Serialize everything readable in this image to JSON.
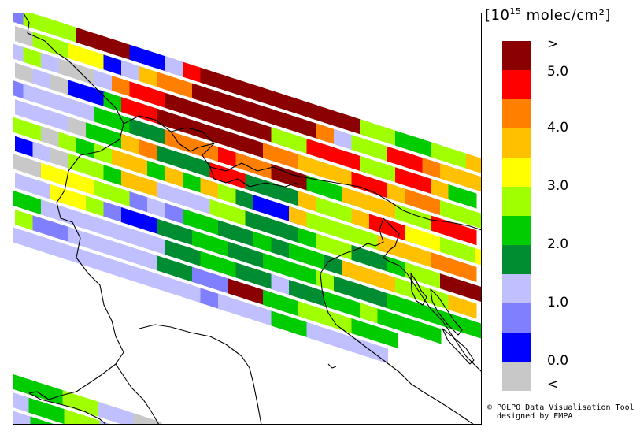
{
  "map": {
    "region": "Northern Italy and Alps",
    "bins": [
      "<",
      "0.0-0.5",
      "0.5-1.0",
      "1.0-1.5",
      "1.5-2.0",
      "2.0-2.5",
      "2.5-3.0",
      "3.0-3.5",
      "3.5-4.0",
      "4.0-4.5",
      "4.5-5.0",
      ">"
    ]
  },
  "legend": {
    "unit_prefix": "[10",
    "unit_exp": "15",
    "unit_suffix": " molec/cm²]",
    "colors": [
      "#8b0000",
      "#ff0000",
      "#ff8000",
      "#ffc000",
      "#ffff00",
      "#a0ff00",
      "#00cc00",
      "#008c30",
      "#c0c0ff",
      "#8080ff",
      "#0000ff",
      "#c8c8c8"
    ],
    "labels": [
      ">",
      "5.0",
      "4.0",
      "3.0",
      "2.0",
      "1.0",
      "0.0",
      "<"
    ]
  },
  "credit": {
    "line1": "© POLPO Data Visualisation Tool",
    "line2": "  designed by EMPA"
  }
}
